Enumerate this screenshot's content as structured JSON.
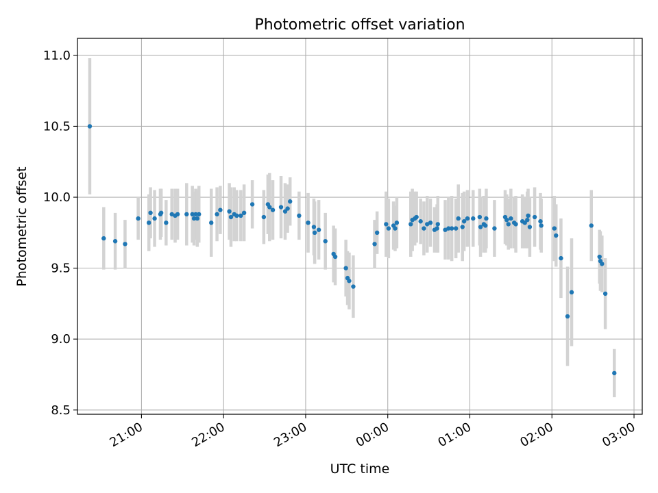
{
  "chart_data": {
    "type": "scatter",
    "title": "Photometric offset variation",
    "xlabel": "UTC time",
    "ylabel": "Photometric offset",
    "x_unit": "hours UTC (values beyond 24 are after midnight)",
    "xlim": [
      20.22,
      27.1
    ],
    "ylim": [
      8.47,
      11.12
    ],
    "x_ticks": [
      {
        "value": 21,
        "label": "21:00"
      },
      {
        "value": 22,
        "label": "22:00"
      },
      {
        "value": 23,
        "label": "23:00"
      },
      {
        "value": 24,
        "label": "00:00"
      },
      {
        "value": 25,
        "label": "01:00"
      },
      {
        "value": 26,
        "label": "02:00"
      },
      {
        "value": 27,
        "label": "03:00"
      }
    ],
    "y_ticks": [
      {
        "value": 8.5,
        "label": "8.5"
      },
      {
        "value": 9.0,
        "label": "9.0"
      },
      {
        "value": 9.5,
        "label": "9.5"
      },
      {
        "value": 10.0,
        "label": "10.0"
      },
      {
        "value": 10.5,
        "label": "10.5"
      },
      {
        "value": 11.0,
        "label": "11.0"
      }
    ],
    "grid": true,
    "point_color": "#1f77b4",
    "errorbar_color": "#d3d3d3",
    "points": [
      [
        20.37,
        10.5,
        0.48
      ],
      [
        20.54,
        9.71,
        0.22
      ],
      [
        20.68,
        9.69,
        0.2
      ],
      [
        20.8,
        9.67,
        0.17
      ],
      [
        20.96,
        9.85,
        0.15
      ],
      [
        21.09,
        9.82,
        0.2
      ],
      [
        21.11,
        9.89,
        0.18
      ],
      [
        21.16,
        9.85,
        0.2
      ],
      [
        21.23,
        9.88,
        0.18
      ],
      [
        21.24,
        9.89,
        0.17
      ],
      [
        21.3,
        9.82,
        0.16
      ],
      [
        21.37,
        9.88,
        0.18
      ],
      [
        21.41,
        9.87,
        0.19
      ],
      [
        21.44,
        9.88,
        0.18
      ],
      [
        21.55,
        9.88,
        0.22
      ],
      [
        21.62,
        9.88,
        0.2
      ],
      [
        21.64,
        9.85,
        0.19
      ],
      [
        21.66,
        9.88,
        0.18
      ],
      [
        21.68,
        9.85,
        0.2
      ],
      [
        21.7,
        9.88,
        0.2
      ],
      [
        21.85,
        9.82,
        0.24
      ],
      [
        21.92,
        9.88,
        0.19
      ],
      [
        21.96,
        9.91,
        0.17
      ],
      [
        22.07,
        9.9,
        0.2
      ],
      [
        22.09,
        9.86,
        0.21
      ],
      [
        22.13,
        9.88,
        0.19
      ],
      [
        22.16,
        9.87,
        0.18
      ],
      [
        22.21,
        9.87,
        0.18
      ],
      [
        22.25,
        9.89,
        0.2
      ],
      [
        22.35,
        9.95,
        0.17
      ],
      [
        22.49,
        9.86,
        0.19
      ],
      [
        22.54,
        9.95,
        0.21
      ],
      [
        22.56,
        9.93,
        0.24
      ],
      [
        22.6,
        9.91,
        0.21
      ],
      [
        22.7,
        9.93,
        0.22
      ],
      [
        22.75,
        9.9,
        0.2
      ],
      [
        22.78,
        9.92,
        0.17
      ],
      [
        22.81,
        9.97,
        0.17
      ],
      [
        22.92,
        9.87,
        0.17
      ],
      [
        23.03,
        9.82,
        0.21
      ],
      [
        23.1,
        9.79,
        0.2
      ],
      [
        23.11,
        9.75,
        0.22
      ],
      [
        23.16,
        9.77,
        0.21
      ],
      [
        23.24,
        9.69,
        0.2
      ],
      [
        23.34,
        9.6,
        0.2
      ],
      [
        23.36,
        9.58,
        0.2
      ],
      [
        23.49,
        9.5,
        0.2
      ],
      [
        23.51,
        9.43,
        0.19
      ],
      [
        23.53,
        9.41,
        0.2
      ],
      [
        23.58,
        9.37,
        0.22
      ],
      [
        23.84,
        9.67,
        0.17
      ],
      [
        23.87,
        9.75,
        0.15
      ],
      [
        23.98,
        9.81,
        0.23
      ],
      [
        24.01,
        9.78,
        0.21
      ],
      [
        24.07,
        9.8,
        0.17
      ],
      [
        24.09,
        9.78,
        0.16
      ],
      [
        24.11,
        9.82,
        0.18
      ],
      [
        24.28,
        9.81,
        0.23
      ],
      [
        24.3,
        9.84,
        0.22
      ],
      [
        24.33,
        9.85,
        0.19
      ],
      [
        24.35,
        9.86,
        0.18
      ],
      [
        24.4,
        9.83,
        0.16
      ],
      [
        24.44,
        9.78,
        0.19
      ],
      [
        24.48,
        9.81,
        0.2
      ],
      [
        24.52,
        9.82,
        0.17
      ],
      [
        24.57,
        9.77,
        0.16
      ],
      [
        24.6,
        9.78,
        0.17
      ],
      [
        24.61,
        9.81,
        0.2
      ],
      [
        24.7,
        9.77,
        0.21
      ],
      [
        24.74,
        9.78,
        0.22
      ],
      [
        24.78,
        9.78,
        0.23
      ],
      [
        24.83,
        9.78,
        0.21
      ],
      [
        24.86,
        9.85,
        0.24
      ],
      [
        24.91,
        9.79,
        0.24
      ],
      [
        24.93,
        9.83,
        0.21
      ],
      [
        24.97,
        9.85,
        0.2
      ],
      [
        25.04,
        9.85,
        0.2
      ],
      [
        25.12,
        9.86,
        0.2
      ],
      [
        25.13,
        9.79,
        0.21
      ],
      [
        25.17,
        9.81,
        0.2
      ],
      [
        25.19,
        9.8,
        0.19
      ],
      [
        25.2,
        9.85,
        0.21
      ],
      [
        25.3,
        9.78,
        0.2
      ],
      [
        25.43,
        9.86,
        0.19
      ],
      [
        25.45,
        9.84,
        0.18
      ],
      [
        25.47,
        9.81,
        0.18
      ],
      [
        25.5,
        9.85,
        0.21
      ],
      [
        25.54,
        9.82,
        0.18
      ],
      [
        25.56,
        9.81,
        0.2
      ],
      [
        25.64,
        9.83,
        0.19
      ],
      [
        25.67,
        9.82,
        0.18
      ],
      [
        25.7,
        9.84,
        0.2
      ],
      [
        25.71,
        9.87,
        0.19
      ],
      [
        25.73,
        9.79,
        0.21
      ],
      [
        25.79,
        9.86,
        0.21
      ],
      [
        25.86,
        9.83,
        0.2
      ],
      [
        25.87,
        9.8,
        0.19
      ],
      [
        26.03,
        9.78,
        0.23
      ],
      [
        26.05,
        9.73,
        0.22
      ],
      [
        26.11,
        9.57,
        0.28
      ],
      [
        26.19,
        9.16,
        0.35
      ],
      [
        26.24,
        9.33,
        0.38
      ],
      [
        26.48,
        9.8,
        0.25
      ],
      [
        26.58,
        9.58,
        0.19
      ],
      [
        26.59,
        9.55,
        0.21
      ],
      [
        26.61,
        9.53,
        0.2
      ],
      [
        26.65,
        9.32,
        0.25
      ],
      [
        26.76,
        8.76,
        0.17
      ]
    ]
  }
}
